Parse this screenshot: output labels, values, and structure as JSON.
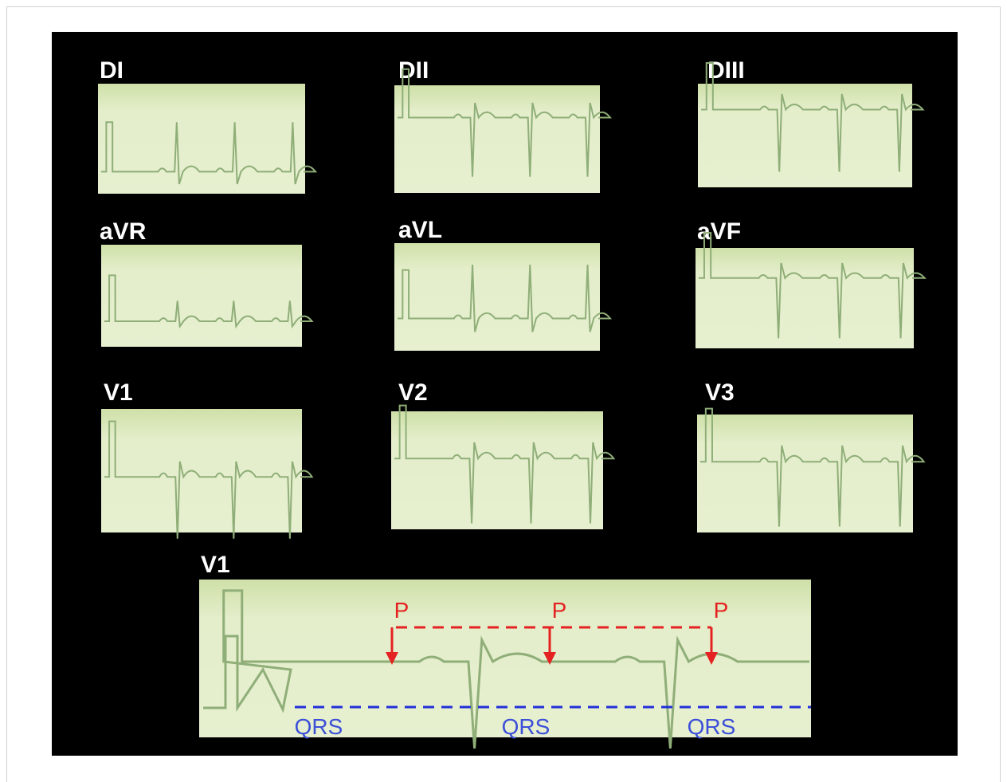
{
  "leads": [
    "DI",
    "DII",
    "DIII",
    "aVR",
    "aVL",
    "aVF",
    "V1",
    "V2",
    "V3"
  ],
  "rhythm_strip": {
    "label": "V1",
    "p_labels": [
      "P",
      "P",
      "P"
    ],
    "qrs_labels": [
      "QRS",
      "QRS",
      "QRS"
    ]
  }
}
